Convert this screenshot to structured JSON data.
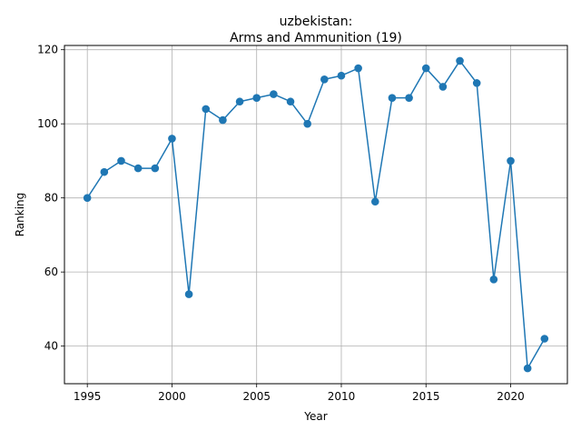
{
  "chart_data": {
    "type": "line",
    "title": "uzbekistan:",
    "subtitle": "Arms and Ammunition (19)",
    "xlabel": "Year",
    "ylabel": "Ranking",
    "xlim": [
      1993.65,
      1995.0
    ],
    "xrange": [
      1993.65,
      2023.35
    ],
    "ylim": [
      29.85,
      121.15
    ],
    "xticks": [
      1995,
      2000,
      2005,
      2010,
      2015,
      2020
    ],
    "yticks": [
      40,
      60,
      80,
      100,
      120
    ],
    "grid": true,
    "line_color": "#1f77b4",
    "x": [
      1995,
      1996,
      1997,
      1998,
      1999,
      2000,
      2001,
      2002,
      2003,
      2004,
      2005,
      2006,
      2007,
      2008,
      2009,
      2010,
      2011,
      2012,
      2013,
      2014,
      2015,
      2016,
      2017,
      2018,
      2019,
      2020,
      2021,
      2022
    ],
    "values": [
      80,
      87,
      90,
      88,
      88,
      96,
      54,
      104,
      101,
      106,
      107,
      108,
      106,
      100,
      112,
      113,
      115,
      79,
      107,
      107,
      115,
      110,
      117,
      111,
      58,
      90,
      34,
      42
    ]
  }
}
